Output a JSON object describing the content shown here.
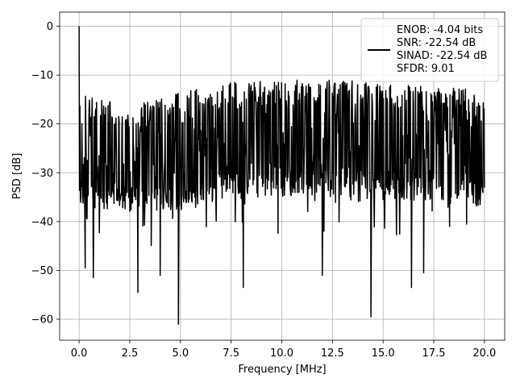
{
  "chart_data": {
    "type": "line",
    "xlabel": "Frequency [MHz]",
    "ylabel": "PSD [dB]",
    "xlim": [
      -0.96,
      21.0
    ],
    "ylim": [
      -64.3,
      2.9
    ],
    "xticks": [
      0.0,
      2.5,
      5.0,
      7.5,
      10.0,
      12.5,
      15.0,
      17.5,
      20.0
    ],
    "xtick_labels": [
      "0.0",
      "2.5",
      "5.0",
      "7.5",
      "10.0",
      "12.5",
      "15.0",
      "17.5",
      "20.0"
    ],
    "yticks": [
      0,
      -10,
      -20,
      -30,
      -40,
      -50,
      -60
    ],
    "ytick_labels": [
      "0",
      "−10",
      "−20",
      "−30",
      "−40",
      "−50",
      "−60"
    ],
    "grid": true,
    "legend_position": "top-right",
    "series": [
      {
        "name": "ENOB: -4.04 bits\nSNR: -22.54 dB\nSINAD: -22.54 dB\nSFDR: 9.01",
        "color": "#000000",
        "x_start": 0.0,
        "x_end": 20.0,
        "points": 1024,
        "peak": {
          "x": 0.0,
          "y": 0.0
        },
        "envelope_upper": [
          [
            0.0,
            -13.5
          ],
          [
            2.5,
            -16.5
          ],
          [
            5.0,
            -13.5
          ],
          [
            7.5,
            -11.5
          ],
          [
            10.0,
            -11.0
          ],
          [
            12.5,
            -11.0
          ],
          [
            15.0,
            -11.5
          ],
          [
            17.5,
            -12.5
          ],
          [
            20.0,
            -13.0
          ]
        ],
        "envelope_lower": [
          [
            0.0,
            -37.0
          ],
          [
            2.5,
            -38.0
          ],
          [
            5.0,
            -37.5
          ],
          [
            7.5,
            -35.0
          ],
          [
            10.0,
            -35.0
          ],
          [
            12.5,
            -35.0
          ],
          [
            15.0,
            -35.5
          ],
          [
            17.5,
            -36.0
          ],
          [
            20.0,
            -37.0
          ]
        ],
        "notable_minima": [
          [
            0.3,
            -49.5
          ],
          [
            0.7,
            -51.5
          ],
          [
            2.9,
            -54.5
          ],
          [
            4.0,
            -51.0
          ],
          [
            4.9,
            -61.0
          ],
          [
            8.1,
            -53.5
          ],
          [
            12.0,
            -51.0
          ],
          [
            14.4,
            -59.5
          ],
          [
            16.4,
            -53.5
          ],
          [
            17.0,
            -50.5
          ]
        ]
      }
    ]
  }
}
